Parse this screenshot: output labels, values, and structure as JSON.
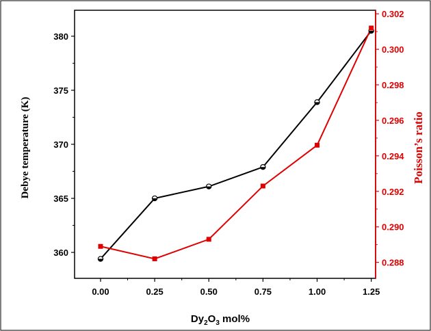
{
  "chart_data": {
    "type": "line",
    "x": [
      0.0,
      0.25,
      0.5,
      0.75,
      1.0,
      1.25
    ],
    "x_tick_labels": [
      "0.00",
      "0.25",
      "0.50",
      "0.75",
      "1.00",
      "1.25"
    ],
    "xlim": [
      -0.12,
      1.27
    ],
    "xlabel": {
      "base": "Dy",
      "sub1": "2",
      "mid": "O",
      "sub2": "3",
      "tail": " mol%"
    },
    "left_axis": {
      "label": "Debye temperature  (K)",
      "ylim": [
        357.6,
        382.4
      ],
      "ticks": [
        360,
        365,
        370,
        375,
        380
      ],
      "tick_labels": [
        "360",
        "365",
        "370",
        "375",
        "380"
      ],
      "color": "#000000"
    },
    "right_axis": {
      "label": "Poisson’s ratio",
      "ylim": [
        0.2871,
        0.3022
      ],
      "ticks": [
        0.288,
        0.29,
        0.292,
        0.294,
        0.296,
        0.298,
        0.3,
        0.302
      ],
      "tick_labels": [
        "0.288",
        "0.290",
        "0.292",
        "0.294",
        "0.296",
        "0.298",
        "0.300",
        "0.302"
      ],
      "color": "#e00000"
    },
    "series": [
      {
        "axis": "left",
        "marker": "half-filled-circle",
        "color": "#000000",
        "values": [
          359.4,
          365.0,
          366.1,
          367.9,
          373.9,
          380.5
        ]
      },
      {
        "axis": "right",
        "marker": "square",
        "color": "#e00000",
        "values": [
          0.2889,
          0.2882,
          0.2893,
          0.2923,
          0.2946,
          0.3012
        ]
      }
    ],
    "grid": false,
    "legend": "none"
  }
}
